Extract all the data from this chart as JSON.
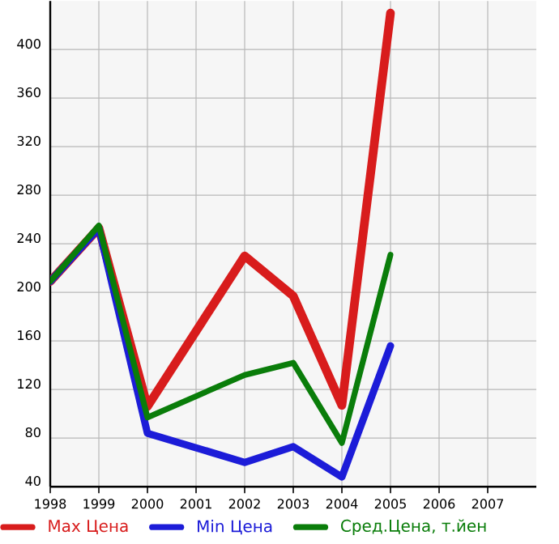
{
  "chart_data": {
    "type": "line",
    "x": [
      1998,
      1999,
      2000,
      2002,
      2003,
      2004,
      2005
    ],
    "series": [
      {
        "name": "Max Цена",
        "color": "#d81c1c",
        "values": [
          209,
          253,
          106,
          230,
          197,
          107,
          430
        ]
      },
      {
        "name": "Min Цена",
        "color": "#1c1cd8",
        "values": [
          209,
          253,
          84,
          60,
          73,
          48,
          156
        ]
      },
      {
        "name": "Сред.Цена, т.йен",
        "color": "#0a7d0a",
        "values": [
          209,
          255,
          97,
          132,
          142,
          76,
          231
        ]
      }
    ],
    "xlim": [
      1998,
      2008
    ],
    "ylim": [
      40,
      440
    ],
    "xticks": [
      1998,
      1999,
      2000,
      2001,
      2002,
      2003,
      2004,
      2005,
      2006,
      2007
    ],
    "yticks": [
      40,
      80,
      120,
      160,
      200,
      240,
      280,
      320,
      360,
      400
    ],
    "grid": true,
    "legend": "bottom",
    "marker": "none",
    "line_style": "solid"
  }
}
